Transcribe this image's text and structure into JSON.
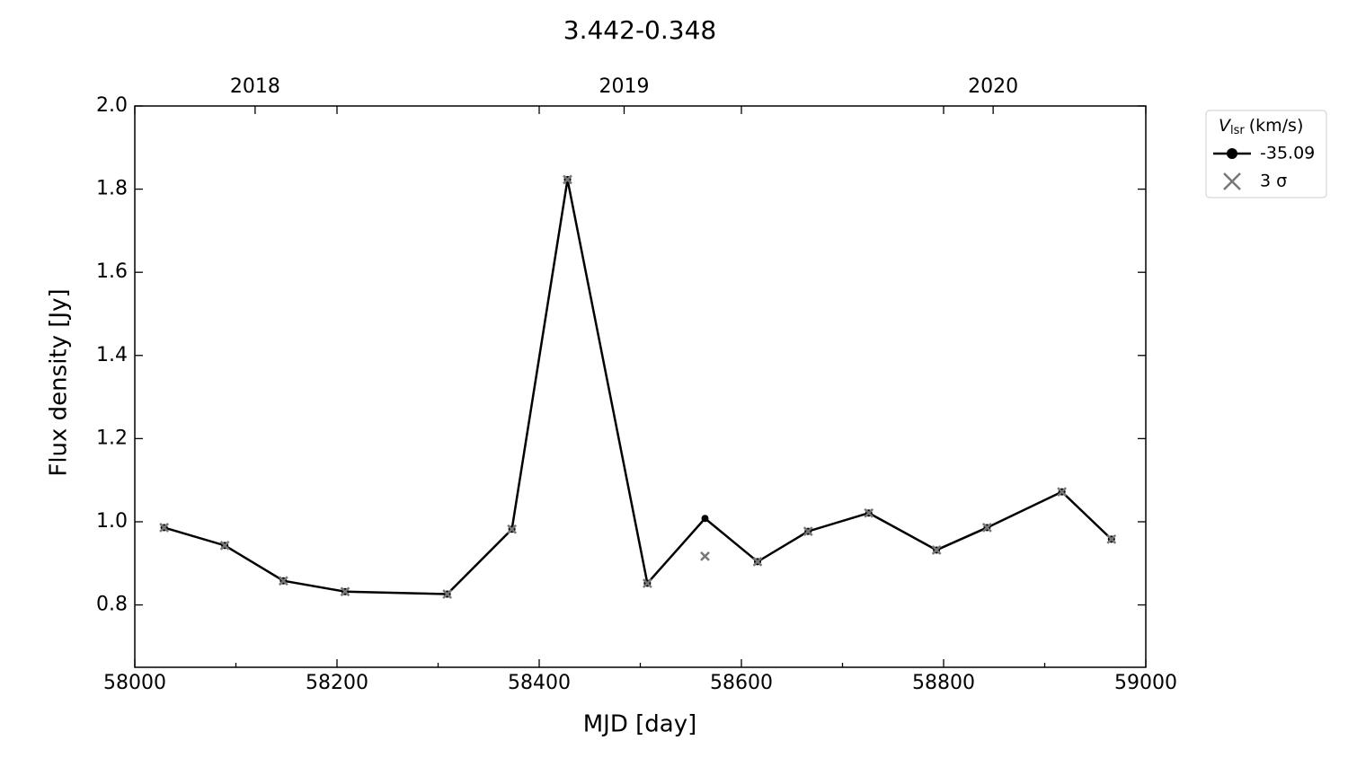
{
  "chart_data": {
    "type": "line",
    "title": "3.442-0.348",
    "x_label": "MJD [day]",
    "y_label": "Flux density [Jy]",
    "x": [
      58029,
      58089,
      58147,
      58208,
      58309,
      58373,
      58428,
      58507,
      58564,
      58616,
      58666,
      58726,
      58793,
      58843,
      58917,
      58966
    ],
    "series": [
      {
        "name": "-35.09",
        "type": "line",
        "color": "#000000",
        "values": [
          0.986,
          0.943,
          0.858,
          0.832,
          0.826,
          0.982,
          1.823,
          0.852,
          1.008,
          0.904,
          0.977,
          1.021,
          0.932,
          0.986,
          1.072,
          0.958
        ]
      },
      {
        "name": "3 σ",
        "type": "scatter",
        "color": "#777777",
        "values": [
          0.986,
          0.943,
          0.858,
          0.832,
          0.826,
          0.982,
          1.823,
          0.852,
          0.917,
          0.904,
          0.977,
          1.021,
          0.932,
          0.986,
          1.072,
          0.958
        ]
      }
    ],
    "legend_title": {
      "symbol": "V",
      "subscript": "lsr",
      "unit": "(km/s)"
    },
    "legend": "outside upper right",
    "xlim": [
      58000,
      59000
    ],
    "xticks": [
      58000,
      58200,
      58400,
      58600,
      58800,
      59000
    ],
    "xminorticks": [
      58100,
      58300,
      58500,
      58700,
      58900
    ],
    "x2ticks": [
      {
        "value": 58119,
        "label": "2018"
      },
      {
        "value": 58484,
        "label": "2019"
      },
      {
        "value": 58849,
        "label": "2020"
      }
    ],
    "ylim": [
      0.65,
      2.0
    ],
    "yticks": [
      {
        "value": 0.8,
        "label": "0.8"
      },
      {
        "value": 1.0,
        "label": "1.0"
      },
      {
        "value": 1.2,
        "label": "1.2"
      },
      {
        "value": 1.4,
        "label": "1.4"
      },
      {
        "value": 1.6,
        "label": "1.6"
      },
      {
        "value": 1.8,
        "label": "1.8"
      },
      {
        "value": 2.0,
        "label": "2.0"
      }
    ],
    "grid": false
  }
}
